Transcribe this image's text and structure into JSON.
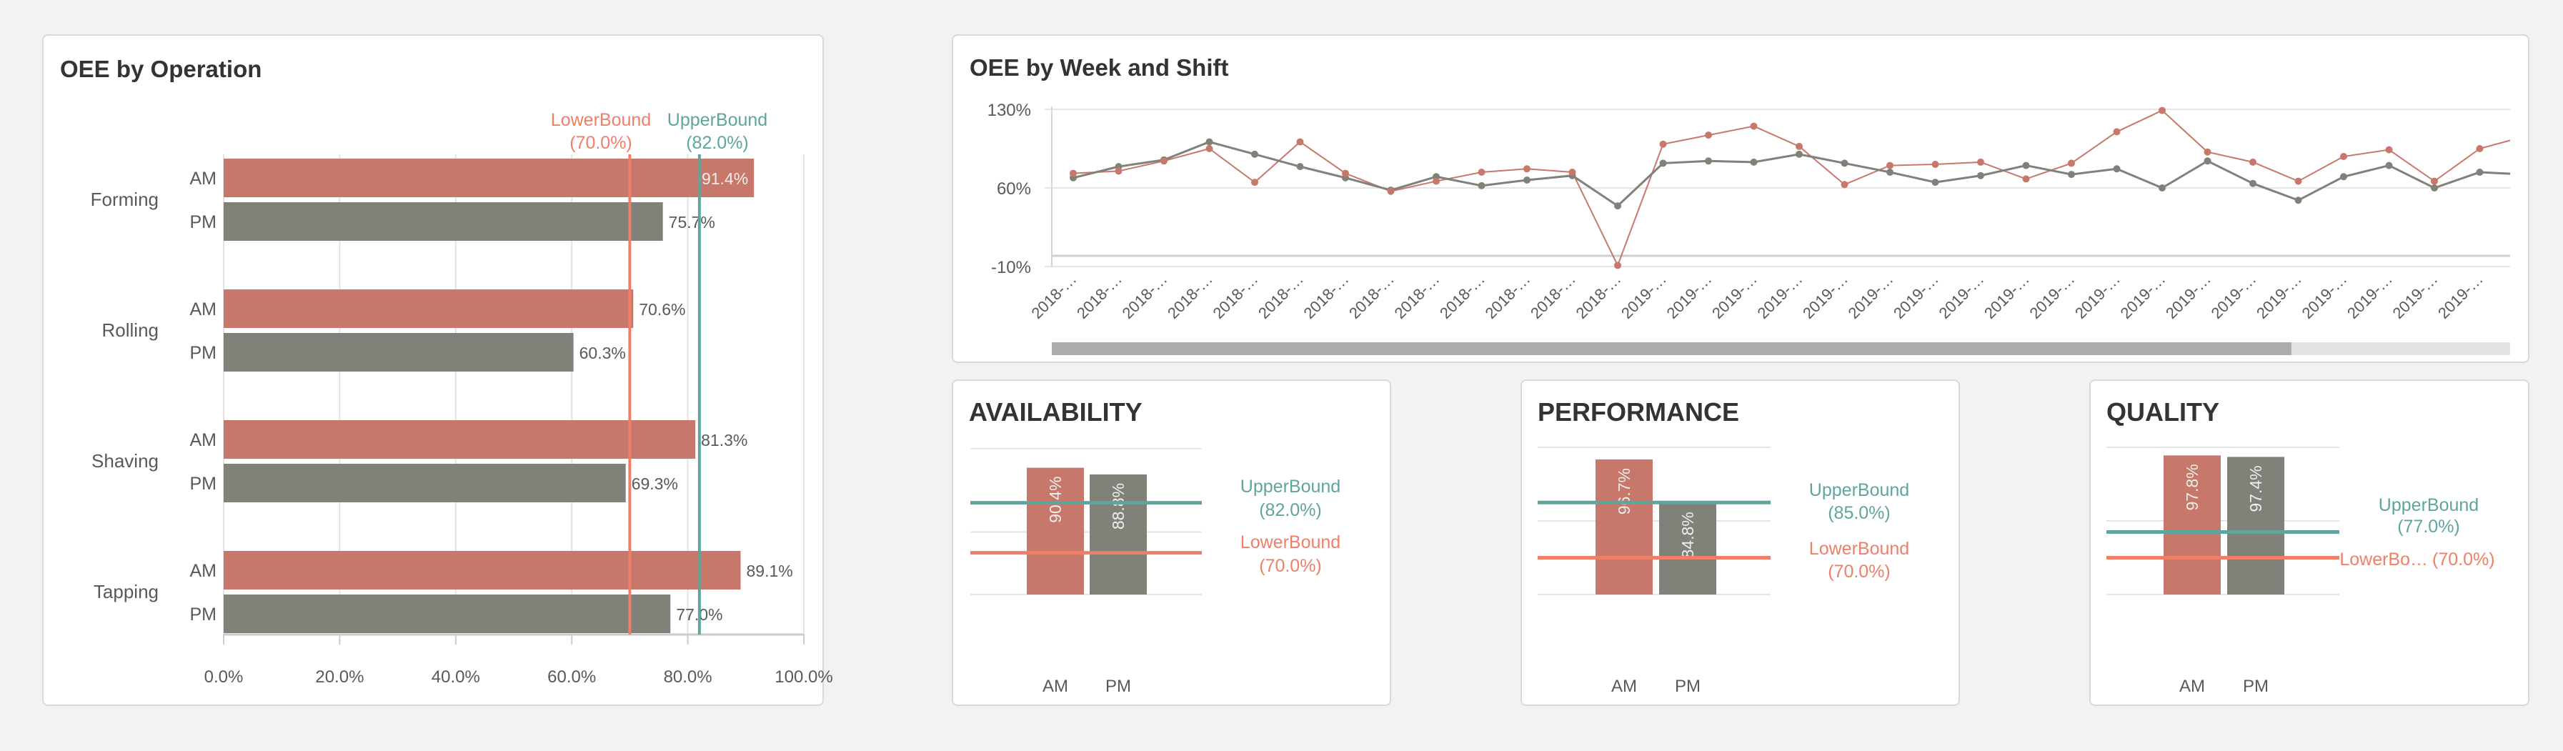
{
  "colors": {
    "am": "#c8786a",
    "pm": "#80827a",
    "lower_bound": "#f07f69",
    "upper_bound": "#5fa59d",
    "text": "#595959"
  },
  "chart_data": [
    {
      "id": "oee_by_operation",
      "type": "bar",
      "orientation": "horizontal",
      "title": "OEE by Operation",
      "categories": [
        "Forming",
        "Rolling",
        "Shaving",
        "Tapping"
      ],
      "series": [
        {
          "name": "AM",
          "values": [
            91.4,
            70.6,
            81.3,
            89.1
          ],
          "labels": [
            "91.4%",
            "70.6%",
            "81.3%",
            "89.1%"
          ]
        },
        {
          "name": "PM",
          "values": [
            75.7,
            60.3,
            69.3,
            77.0
          ],
          "labels": [
            "75.7%",
            "60.3%",
            "69.3%",
            "77.0%"
          ]
        }
      ],
      "xlim": [
        0,
        100
      ],
      "xticks": [
        0,
        20,
        40,
        60,
        80,
        100
      ],
      "xtick_labels": [
        "0.0%",
        "20.0%",
        "40.0%",
        "60.0%",
        "80.0%",
        "100.0%"
      ],
      "grid": true,
      "reference_lines": [
        {
          "name": "LowerBound",
          "value": 70,
          "label": "(70.0%)"
        },
        {
          "name": "UpperBound",
          "value": 82,
          "label": "(82.0%)"
        }
      ]
    },
    {
      "id": "oee_by_week_and_shift",
      "type": "line",
      "title": "OEE by Week and Shift",
      "x_labels": [
        "2018-…",
        "2018-…",
        "2018-…",
        "2018-…",
        "2018-…",
        "2018-…",
        "2018-…",
        "2018-…",
        "2018-…",
        "2018-…",
        "2018-…",
        "2018-…",
        "2018-…",
        "2019-…",
        "2019-…",
        "2019-…",
        "2019-…",
        "2019-…",
        "2019-…",
        "2019-…",
        "2019-…",
        "2019-…",
        "2019-…",
        "2019-…",
        "2019-…",
        "2019-…",
        "2019-…",
        "2019-…",
        "2019-…",
        "2019-…",
        "2019-…",
        "2019-…",
        "2019-…"
      ],
      "series": [
        {
          "shift": "AM",
          "values": [
            73,
            75,
            84,
            95,
            65,
            101,
            73,
            57,
            66,
            74,
            77,
            74,
            -9,
            99,
            107,
            115,
            97,
            63,
            80,
            81,
            83,
            68,
            82,
            110,
            129,
            92,
            83,
            66,
            88,
            94,
            66,
            95,
            106
          ]
        },
        {
          "shift": "PM",
          "values": [
            69,
            79,
            85,
            101,
            90,
            79,
            69,
            58,
            70,
            62,
            67,
            71,
            44,
            82,
            84,
            83,
            90,
            82,
            74,
            65,
            71,
            80,
            72,
            77,
            60,
            84,
            64,
            49,
            70,
            80,
            60,
            74,
            72
          ]
        }
      ],
      "ylim": [
        -10,
        130
      ],
      "yticks": [
        130,
        60,
        -10
      ],
      "ytick_labels": [
        "130%",
        "60%",
        "-10%"
      ],
      "grid": true,
      "scrollbar_visible_fraction": 0.85
    },
    {
      "id": "availability",
      "type": "bar",
      "title": "AVAILABILITY",
      "categories": [
        "AM",
        "PM"
      ],
      "values": [
        90.4,
        88.8
      ],
      "labels": [
        "90.4%",
        "88.8%"
      ],
      "ylim": [
        60,
        95.3
      ],
      "gridlines": [
        60,
        75,
        95
      ],
      "upper": {
        "name": "UpperBound",
        "value": 82,
        "label": "(82.0%)"
      },
      "lower": {
        "name": "LowerBound",
        "value": 70,
        "label": "(70.0%)"
      }
    },
    {
      "id": "performance",
      "type": "bar",
      "title": "PERFORMANCE",
      "categories": [
        "AM",
        "PM"
      ],
      "values": [
        96.7,
        84.8
      ],
      "labels": [
        "96.7%",
        "84.8%"
      ],
      "ylim": [
        60,
        100
      ],
      "gridlines": [
        60,
        80,
        100
      ],
      "upper": {
        "name": "UpperBound",
        "value": 85,
        "label": "(85.0%)"
      },
      "lower": {
        "name": "LowerBound",
        "value": 70,
        "label": "(70.0%)"
      }
    },
    {
      "id": "quality",
      "type": "bar",
      "title": "QUALITY",
      "categories": [
        "AM",
        "PM"
      ],
      "values": [
        97.8,
        97.4
      ],
      "labels": [
        "97.8%",
        "97.4%"
      ],
      "ylim": [
        60,
        100
      ],
      "gridlines": [
        60,
        80,
        100
      ],
      "upper": {
        "name": "UpperBound",
        "value": 77,
        "label": "(77.0%)"
      },
      "lower": {
        "name": "LowerBo…",
        "value": 70,
        "label": "(70.0%)"
      }
    }
  ]
}
